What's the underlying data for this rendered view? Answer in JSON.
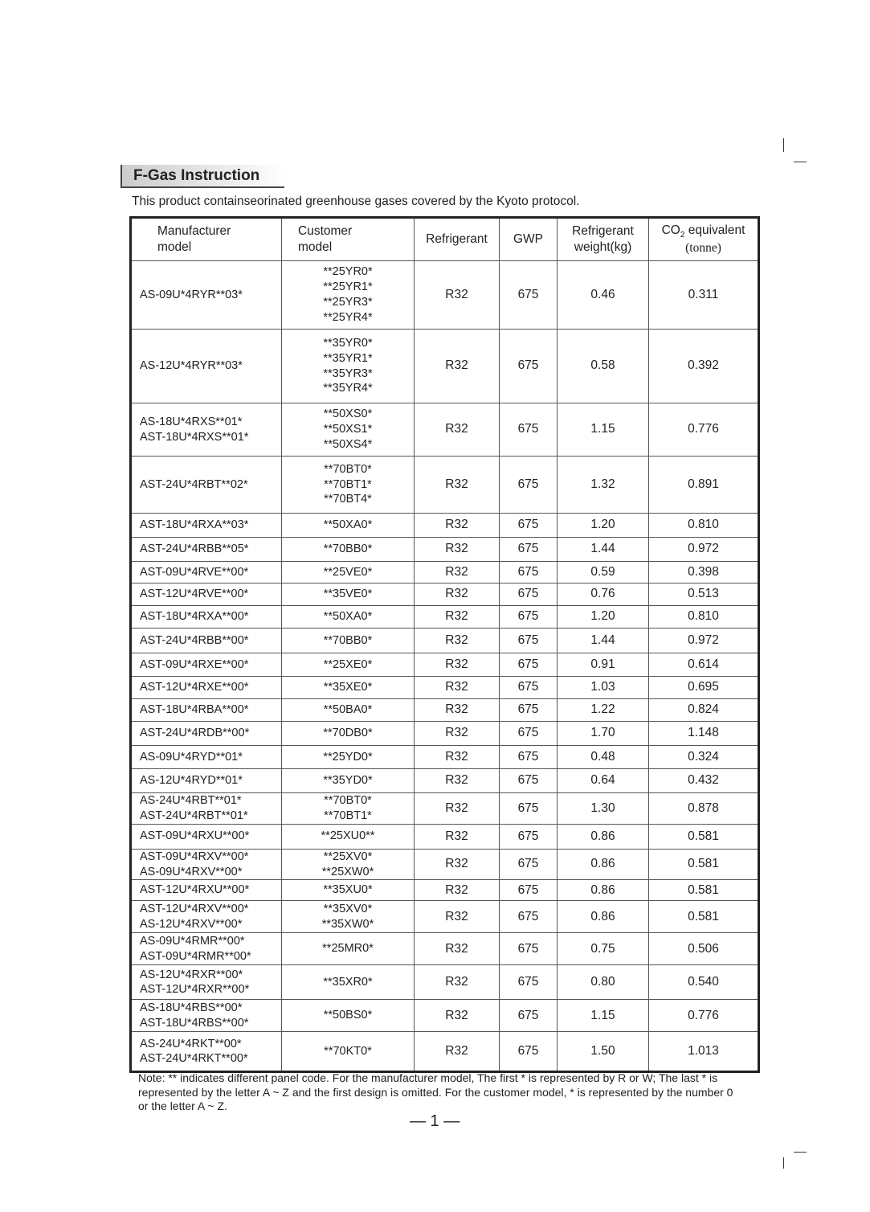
{
  "section_title": "F-Gas Instruction",
  "intro": "This product containseorinated greenhouse gases covered by the Kyoto protocol.",
  "table": {
    "headers": {
      "manufacturer": [
        "Manufacturer",
        "model"
      ],
      "customer": [
        "Customer",
        "model"
      ],
      "refrigerant": "Refrigerant",
      "gwp": "GWP",
      "weight": [
        "Refrigerant",
        "weight(kg)"
      ],
      "co2": [
        "CO",
        "2",
        " equivalent",
        "(tonne)"
      ]
    },
    "rows": [
      {
        "mfr": [
          "AS-09U*4RYR**03*"
        ],
        "cust": [
          "**25YR0*",
          "**25YR1*",
          "**25YR3*",
          "**25YR4*"
        ],
        "ref": "R32",
        "gwp": "675",
        "kg": "0.46",
        "co2": "0.311"
      },
      {
        "mfr": [
          "AS-12U*4RYR**03*"
        ],
        "cust": [
          "**35YR0*",
          "**35YR1*",
          "**35YR3*",
          "**35YR4*"
        ],
        "ref": "R32",
        "gwp": "675",
        "kg": "0.58",
        "co2": "0.392"
      },
      {
        "mfr": [
          "AS-18U*4RXS**01*",
          "AST-18U*4RXS**01*"
        ],
        "cust": [
          "**50XS0*",
          "**50XS1*",
          "**50XS4*"
        ],
        "ref": "R32",
        "gwp": "675",
        "kg": "1.15",
        "co2": "0.776"
      },
      {
        "mfr": [
          "AST-24U*4RBT**02*"
        ],
        "cust": [
          "**70BT0*",
          "**70BT1*",
          "**70BT4*"
        ],
        "ref": "R32",
        "gwp": "675",
        "kg": "1.32",
        "co2": "0.891"
      },
      {
        "mfr": [
          "AST-18U*4RXA**03*"
        ],
        "cust": [
          "**50XA0*"
        ],
        "ref": "R32",
        "gwp": "675",
        "kg": "1.20",
        "co2": "0.810"
      },
      {
        "mfr": [
          "AST-24U*4RBB**05*"
        ],
        "cust": [
          "**70BB0*"
        ],
        "ref": "R32",
        "gwp": "675",
        "kg": "1.44",
        "co2": "0.972"
      },
      {
        "mfr": [
          "AST-09U*4RVE**00*"
        ],
        "cust": [
          "**25VE0*"
        ],
        "ref": "R32",
        "gwp": "675",
        "kg": "0.59",
        "co2": "0.398"
      },
      {
        "mfr": [
          "AST-12U*4RVE**00*"
        ],
        "cust": [
          "**35VE0*"
        ],
        "ref": "R32",
        "gwp": "675",
        "kg": "0.76",
        "co2": "0.513"
      },
      {
        "mfr": [
          "AST-18U*4RXA**00*"
        ],
        "cust": [
          "**50XA0*"
        ],
        "ref": "R32",
        "gwp": "675",
        "kg": "1.20",
        "co2": "0.810"
      },
      {
        "mfr": [
          "AST-24U*4RBB**00*"
        ],
        "cust": [
          "**70BB0*"
        ],
        "ref": "R32",
        "gwp": "675",
        "kg": "1.44",
        "co2": "0.972"
      },
      {
        "mfr": [
          "AST-09U*4RXE**00*"
        ],
        "cust": [
          "**25XE0*"
        ],
        "ref": "R32",
        "gwp": "675",
        "kg": "0.91",
        "co2": "0.614"
      },
      {
        "mfr": [
          "AST-12U*4RXE**00*"
        ],
        "cust": [
          "**35XE0*"
        ],
        "ref": "R32",
        "gwp": "675",
        "kg": "1.03",
        "co2": "0.695"
      },
      {
        "mfr": [
          "AST-18U*4RBA**00*"
        ],
        "cust": [
          "**50BA0*"
        ],
        "ref": "R32",
        "gwp": "675",
        "kg": "1.22",
        "co2": "0.824"
      },
      {
        "mfr": [
          "AST-24U*4RDB**00*"
        ],
        "cust": [
          "**70DB0*"
        ],
        "ref": "R32",
        "gwp": "675",
        "kg": "1.70",
        "co2": "1.148"
      },
      {
        "mfr": [
          "AS-09U*4RYD**01*"
        ],
        "cust": [
          "**25YD0*"
        ],
        "ref": "R32",
        "gwp": "675",
        "kg": "0.48",
        "co2": "0.324"
      },
      {
        "mfr": [
          "AS-12U*4RYD**01*"
        ],
        "cust": [
          "**35YD0*"
        ],
        "ref": "R32",
        "gwp": "675",
        "kg": "0.64",
        "co2": "0.432"
      },
      {
        "mfr": [
          "AS-24U*4RBT**01*",
          "AST-24U*4RBT**01*"
        ],
        "cust": [
          "**70BT0*",
          "**70BT1*"
        ],
        "ref": "R32",
        "gwp": "675",
        "kg": "1.30",
        "co2": "0.878"
      },
      {
        "mfr": [
          "AST-09U*4RXU**00*"
        ],
        "cust": [
          "**25XU0**"
        ],
        "ref": "R32",
        "gwp": "675",
        "kg": "0.86",
        "co2": "0.581"
      },
      {
        "mfr": [
          "AST-09U*4RXV**00*",
          "AS-09U*4RXV**00*"
        ],
        "cust": [
          "**25XV0*",
          "**25XW0*"
        ],
        "ref": "R32",
        "gwp": "675",
        "kg": "0.86",
        "co2": "0.581"
      },
      {
        "mfr": [
          "AST-12U*4RXU**00*"
        ],
        "cust": [
          "**35XU0*"
        ],
        "ref": "R32",
        "gwp": "675",
        "kg": "0.86",
        "co2": "0.581"
      },
      {
        "mfr": [
          "AST-12U*4RXV**00*",
          "AS-12U*4RXV**00*"
        ],
        "cust": [
          "**35XV0*",
          "**35XW0*"
        ],
        "ref": "R32",
        "gwp": "675",
        "kg": "0.86",
        "co2": "0.581"
      },
      {
        "mfr": [
          "AS-09U*4RMR**00*",
          "AST-09U*4RMR**00*"
        ],
        "cust": [
          "**25MR0*"
        ],
        "ref": "R32",
        "gwp": "675",
        "kg": "0.75",
        "co2": "0.506"
      },
      {
        "mfr": [
          "AS-12U*4RXR**00*",
          "AST-12U*4RXR**00*"
        ],
        "cust": [
          "**35XR0*"
        ],
        "ref": "R32",
        "gwp": "675",
        "kg": "0.80",
        "co2": "0.540"
      },
      {
        "mfr": [
          "AS-18U*4RBS**00*",
          "AST-18U*4RBS**00*"
        ],
        "cust": [
          "**50BS0*"
        ],
        "ref": "R32",
        "gwp": "675",
        "kg": "1.15",
        "co2": "0.776"
      },
      {
        "mfr": [
          "AS-24U*4RKT**00*",
          "AST-24U*4RKT**00*"
        ],
        "cust": [
          "**70KT0*"
        ],
        "ref": "R32",
        "gwp": "675",
        "kg": "1.50",
        "co2": "1.013"
      }
    ]
  },
  "note": "Note: ** indicates different panel code. For the manufacturer model, The first * is represented by R or W; The last * is represented by the letter A ~ Z and the first design is omitted. For the customer model, * is represented by the number 0 or the letter A ~ Z.",
  "page_number": "— 1 —"
}
